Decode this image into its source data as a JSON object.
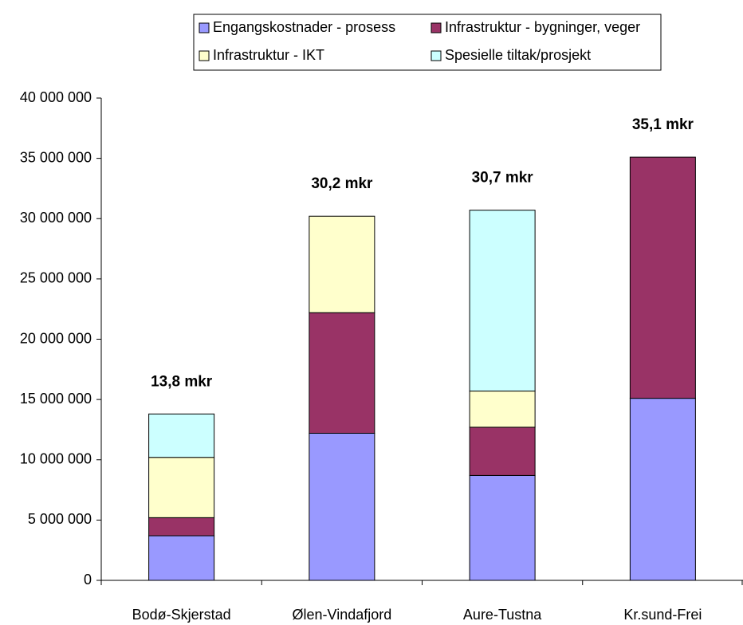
{
  "chart_data": {
    "type": "stacked_bar",
    "categories": [
      "Bodø-Skjerstad",
      "Ølen-Vindafjord",
      "Aure-Tustna",
      "Kr.sund-Frei"
    ],
    "series": [
      {
        "name": "Engangskostnader - prosess",
        "color": "#9999ff",
        "values": [
          3700000,
          12200000,
          8700000,
          15100000
        ]
      },
      {
        "name": "Infrastruktur - bygninger, veger",
        "color": "#993366",
        "values": [
          1500000,
          10000000,
          4000000,
          20000000
        ]
      },
      {
        "name": "Infrastruktur - IKT",
        "color": "#ffffcc",
        "values": [
          5000000,
          8000000,
          3000000,
          0
        ]
      },
      {
        "name": "Spesielle tiltak/prosjekt",
        "color": "#ccffff",
        "values": [
          3600000,
          0,
          15000000,
          0
        ]
      }
    ],
    "annotations": [
      "13,8 mkr",
      "30,2 mkr",
      "30,7 mkr",
      "35,1 mkr"
    ],
    "ylim": [
      0,
      40000000
    ],
    "yticks": [
      0,
      {
        "value": 5000000,
        "label": "5 000 000"
      },
      {
        "value": 10000000,
        "label": "10 000 000"
      },
      {
        "value": 15000000,
        "label": "15 000 000"
      },
      {
        "value": 20000000,
        "label": "20 000 000"
      },
      {
        "value": 25000000,
        "label": "25 000 000"
      },
      {
        "value": 30000000,
        "label": "30 000 000"
      },
      {
        "value": 35000000,
        "label": "35 000 000"
      },
      {
        "value": 40000000,
        "label": "40 000 000"
      }
    ],
    "legend": "top"
  }
}
